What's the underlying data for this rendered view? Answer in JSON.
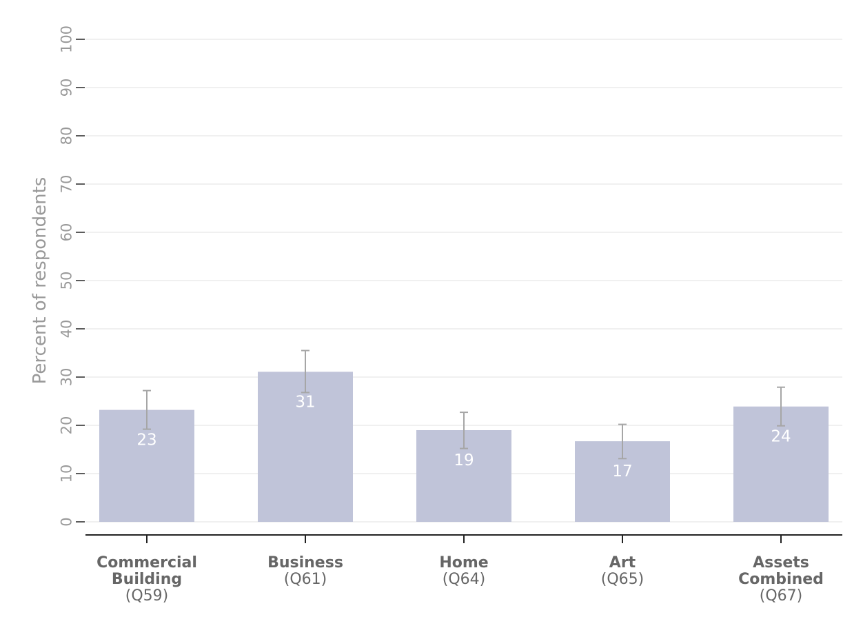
{
  "chart_data": {
    "type": "bar",
    "ylabel": "Percent of respondents",
    "ylim": [
      0,
      100
    ],
    "yticks": [
      0,
      10,
      20,
      30,
      40,
      50,
      60,
      70,
      80,
      90,
      100
    ],
    "grid": true,
    "categories": [
      {
        "lines": [
          "Commercial",
          "Building"
        ],
        "code": "(Q59)"
      },
      {
        "lines": [
          "Business"
        ],
        "code": "(Q61)"
      },
      {
        "lines": [
          "Home"
        ],
        "code": "(Q64)"
      },
      {
        "lines": [
          "Art"
        ],
        "code": "(Q65)"
      },
      {
        "lines": [
          "Assets",
          "Combined"
        ],
        "code": "(Q67)"
      }
    ],
    "values": [
      23.2,
      31.1,
      19,
      16.7,
      23.9
    ],
    "data_labels": [
      "23",
      "31",
      "19",
      "17",
      "24"
    ],
    "error_bars": [
      {
        "low": 19.2,
        "high": 27.2
      },
      {
        "low": 26.8,
        "high": 35.5
      },
      {
        "low": 15.2,
        "high": 22.7
      },
      {
        "low": 13.1,
        "high": 20.2
      },
      {
        "low": 19.9,
        "high": 27.9
      }
    ],
    "colors": {
      "bar": "#c0c4d9",
      "error_bar": "#a6a6a6",
      "grid": "#e8e8e8",
      "axis": "#222222"
    }
  }
}
